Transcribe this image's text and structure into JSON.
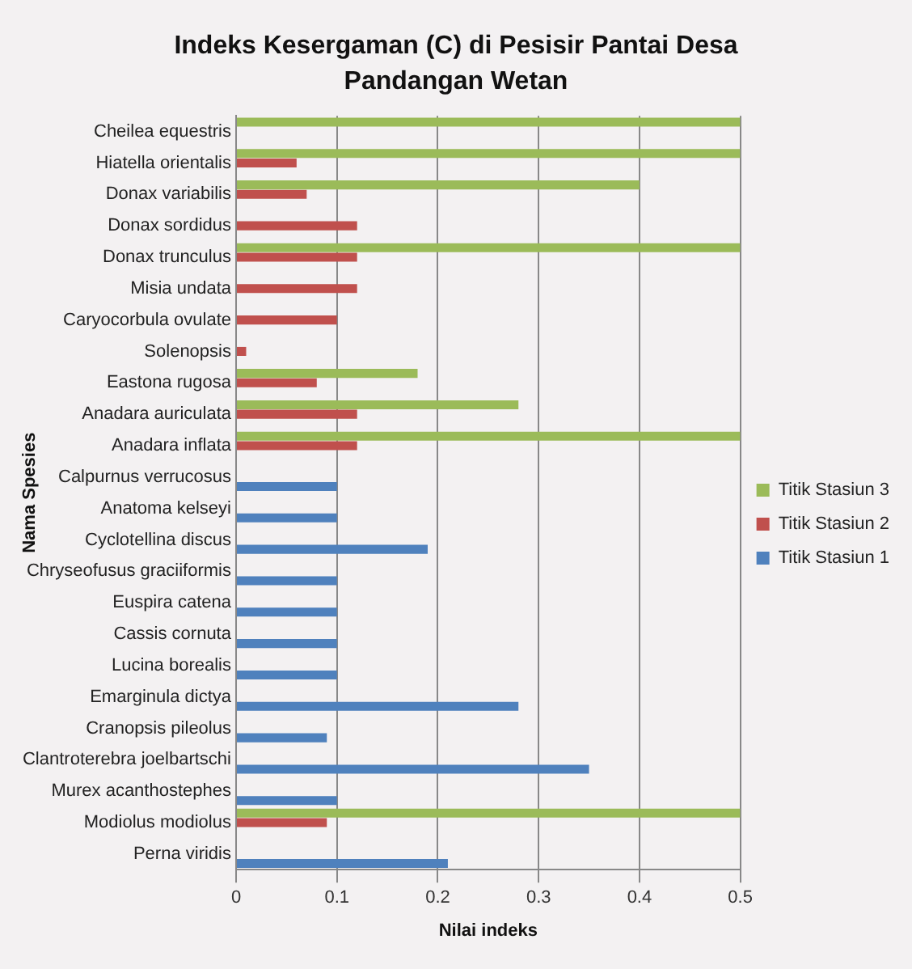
{
  "chart_data": {
    "type": "bar",
    "orientation": "horizontal",
    "title": "Indeks Kesergaman (C) di Pesisir Pantai Desa Pandangan Wetan",
    "xlabel": "Nilai indeks",
    "ylabel": "Nama Spesies",
    "categories": [
      "Cheilea equestris",
      "Hiatella orientalis",
      "Donax variabilis",
      "Donax sordidus",
      "Donax trunculus",
      "Misia undata",
      "Caryocorbula ovulate",
      "Solenopsis",
      "Eastona rugosa",
      "Anadara auriculata",
      "Anadara inflata",
      "Calpurnus verrucosus",
      "Anatoma kelseyi",
      "Cyclotellina discus",
      "Chryseofusus graciiformis",
      "Euspira catena",
      "Cassis cornuta",
      "Lucina borealis",
      "Emarginula dictya",
      "Cranopsis pileolus",
      "Clantroterebra joelbartschi",
      "Murex acanthostephes",
      "Modiolus modiolus",
      "Perna viridis"
    ],
    "series": [
      {
        "name": "Titik Stasiun 3",
        "color": "#9bbb59",
        "values": [
          0.5,
          0.5,
          0.4,
          null,
          0.5,
          null,
          null,
          null,
          0.18,
          0.28,
          0.5,
          null,
          null,
          null,
          null,
          null,
          null,
          null,
          null,
          null,
          null,
          null,
          0.5,
          null
        ]
      },
      {
        "name": "Titik Stasiun 2",
        "color": "#c0504d",
        "values": [
          null,
          0.06,
          0.07,
          0.12,
          0.12,
          0.12,
          0.1,
          0.01,
          0.08,
          0.12,
          0.12,
          null,
          null,
          null,
          null,
          null,
          null,
          null,
          null,
          null,
          null,
          null,
          0.09,
          null
        ]
      },
      {
        "name": "Titik Stasiun 1",
        "color": "#4f81bd",
        "values": [
          null,
          null,
          null,
          null,
          null,
          null,
          null,
          null,
          null,
          null,
          null,
          0.1,
          0.1,
          0.19,
          0.1,
          0.1,
          0.1,
          0.1,
          0.28,
          0.09,
          0.35,
          0.1,
          null,
          0.21
        ]
      }
    ],
    "xlim": [
      0,
      0.5
    ],
    "xticks": [
      0,
      0.1,
      0.2,
      0.3,
      0.4,
      0.5
    ],
    "grid": "x",
    "legend": "right"
  }
}
